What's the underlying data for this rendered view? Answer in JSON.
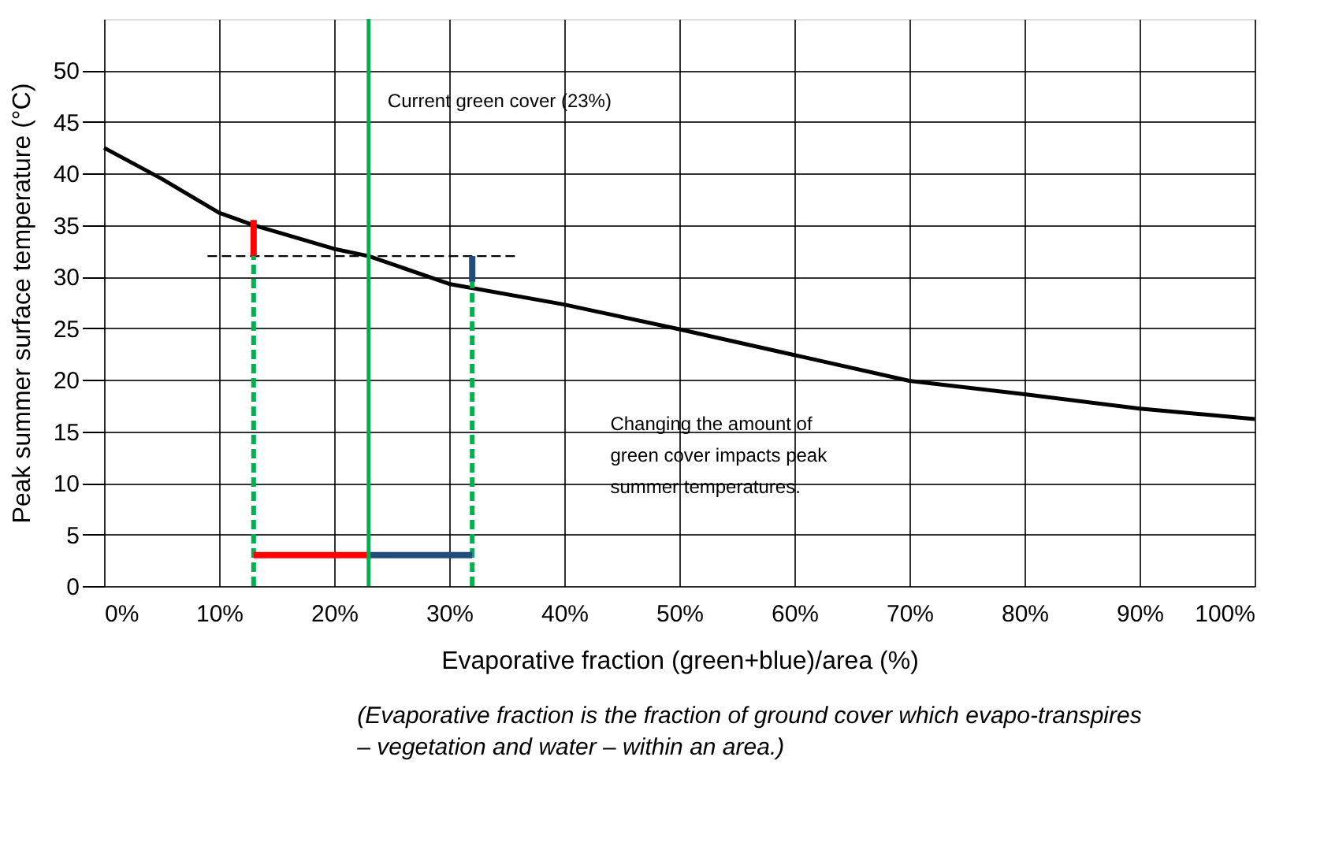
{
  "chart_data": {
    "type": "line",
    "xlabel": "Evaporative fraction (green+blue)/area  (%)",
    "ylabel": "Peak summer surface temperature (°C)",
    "xlim": [
      0,
      100
    ],
    "ylim": [
      0,
      55
    ],
    "xticks": [
      {
        "value": 0,
        "label": "0%"
      },
      {
        "value": 10,
        "label": "10%"
      },
      {
        "value": 20,
        "label": "20%"
      },
      {
        "value": 30,
        "label": "30%"
      },
      {
        "value": 40,
        "label": "40%"
      },
      {
        "value": 50,
        "label": "50%"
      },
      {
        "value": 60,
        "label": "60%"
      },
      {
        "value": 70,
        "label": "70%"
      },
      {
        "value": 80,
        "label": "80%"
      },
      {
        "value": 90,
        "label": "90%"
      },
      {
        "value": 100,
        "label": "100%"
      }
    ],
    "yticks": [
      0,
      5,
      10,
      15,
      20,
      25,
      30,
      35,
      40,
      45,
      50
    ],
    "grid": true,
    "series": [
      {
        "color": "#000000",
        "x": [
          0,
          5,
          10,
          13,
          20,
          23,
          30,
          40,
          50,
          60,
          70,
          80,
          90,
          100
        ],
        "values": [
          42.5,
          39.5,
          36.2,
          35,
          32.7,
          32,
          29.3,
          27.3,
          24.9,
          22.4,
          19.9,
          18.6,
          17.2,
          16.2
        ]
      },
      {
        "color": "#000000",
        "line_style": "dashed",
        "x": [
          9,
          36
        ],
        "values": [
          32,
          32
        ]
      },
      {
        "color": "#00b050",
        "line_style": "dashed",
        "x": [
          13,
          13
        ],
        "values": [
          0,
          32
        ]
      },
      {
        "color": "#00b050",
        "line_style": "dashed",
        "x": [
          32,
          32
        ],
        "values": [
          0,
          29.5
        ]
      },
      {
        "color": "#ff0000",
        "x": [
          13,
          13
        ],
        "values": [
          32,
          35.5
        ]
      },
      {
        "color": "#1f4e79",
        "x": [
          32,
          32
        ],
        "values": [
          32,
          29.5
        ]
      },
      {
        "color": "#ff0000",
        "x": [
          23,
          13
        ],
        "values": [
          3,
          3
        ]
      },
      {
        "color": "#1f4e79",
        "x": [
          23,
          32
        ],
        "values": [
          3,
          3
        ]
      }
    ],
    "ref_lines": [
      {
        "axis": "x",
        "value": 23,
        "label": "Current green cover (23%)",
        "color": "#00b050"
      }
    ],
    "annotations": [
      "Changing the amount of green cover impacts peak summer temperatures.",
      "(Evaporative fraction is the fraction of ground cover which evapo-transpires – vegetation and water – within an area.)"
    ]
  }
}
